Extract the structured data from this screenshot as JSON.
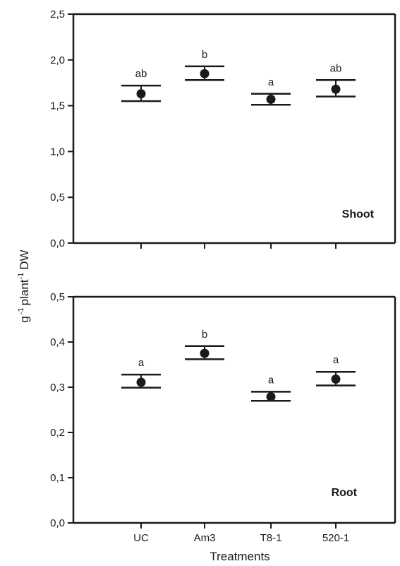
{
  "chart_data": [
    {
      "type": "scatter",
      "panel_label": "Shoot",
      "categories": [
        "UC",
        "Am3",
        "T8-1",
        "520-1"
      ],
      "series": [
        {
          "values": [
            1.63,
            1.85,
            1.57,
            1.68
          ],
          "error_low": [
            1.55,
            1.78,
            1.51,
            1.6
          ],
          "error_high": [
            1.72,
            1.93,
            1.63,
            1.78
          ],
          "significance": [
            "ab",
            "b",
            "a",
            "ab"
          ]
        }
      ],
      "ylim": [
        0,
        2.5
      ],
      "yticks": [
        0,
        0.5,
        1.0,
        1.5,
        2.0,
        2.5
      ],
      "ytick_labels": [
        "0,0",
        "0,5",
        "1,0",
        "1,5",
        "2,0",
        "2,5"
      ],
      "grid": false
    },
    {
      "type": "scatter",
      "panel_label": "Root",
      "categories": [
        "UC",
        "Am3",
        "T8-1",
        "520-1"
      ],
      "series": [
        {
          "values": [
            0.311,
            0.375,
            0.279,
            0.318
          ],
          "error_low": [
            0.299,
            0.362,
            0.27,
            0.304
          ],
          "error_high": [
            0.328,
            0.391,
            0.29,
            0.334
          ],
          "significance": [
            "a",
            "b",
            "a",
            "a"
          ]
        }
      ],
      "ylim": [
        0,
        0.5
      ],
      "yticks": [
        0,
        0.1,
        0.2,
        0.3,
        0.4,
        0.5
      ],
      "ytick_labels": [
        "0,0",
        "0,1",
        "0,2",
        "0,3",
        "0,4",
        "0,5"
      ],
      "grid": false
    }
  ],
  "shared": {
    "xlabel": "Treatments",
    "ylabel": {
      "g": "g",
      "sup1": "-1",
      "plant": "plant",
      "sup2": "-1",
      "dw": "DW"
    }
  }
}
